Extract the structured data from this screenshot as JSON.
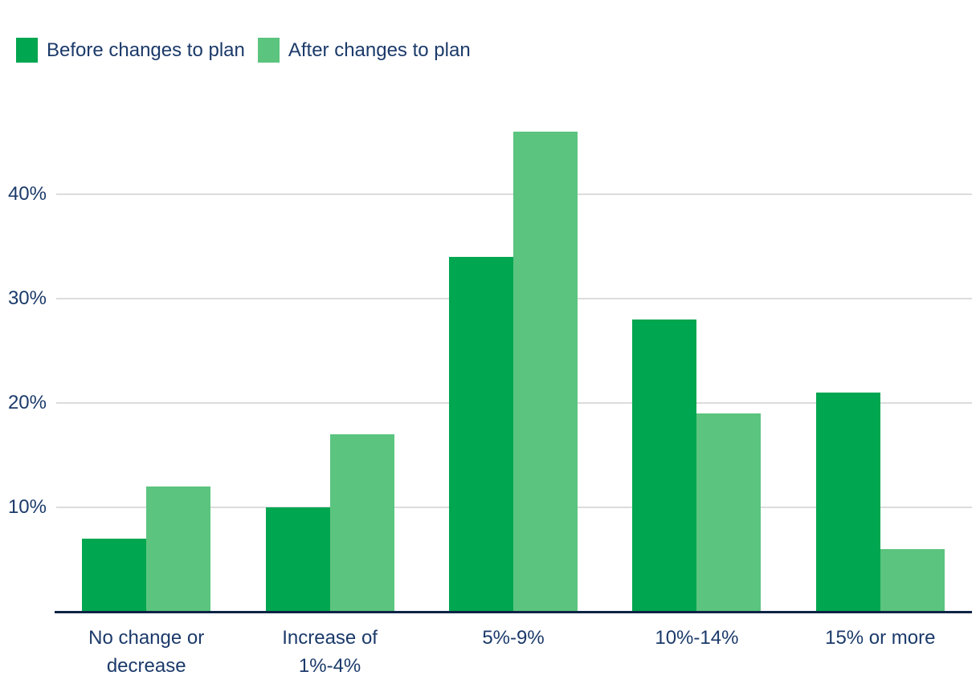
{
  "chart_data": {
    "type": "bar",
    "title": "",
    "categories": [
      "No change or decrease",
      "Increase of 1%-4%",
      "5%-9%",
      "10%-14%",
      "15% or more"
    ],
    "series": [
      {
        "name": "Before changes to plan",
        "color": "#00a650",
        "values": [
          7,
          10,
          34,
          28,
          21
        ]
      },
      {
        "name": "After changes to plan",
        "color": "#5bc47e",
        "values": [
          12,
          17,
          46,
          19,
          6
        ]
      }
    ],
    "unit": "%",
    "y_ticks": [
      {
        "value": 10,
        "label": "10%"
      },
      {
        "value": 20,
        "label": "20%"
      },
      {
        "value": 30,
        "label": "30%"
      },
      {
        "value": 40,
        "label": "40%"
      }
    ],
    "ylim": [
      0,
      50
    ],
    "grid": "horizontal-only",
    "legend_position": "top-left",
    "colors": {
      "before_bar": "#00a650",
      "after_bar": "#5bc47e",
      "text": "#1b3a6a",
      "axis_line": "#0c2444",
      "gridline": "#dcdcdc"
    }
  }
}
